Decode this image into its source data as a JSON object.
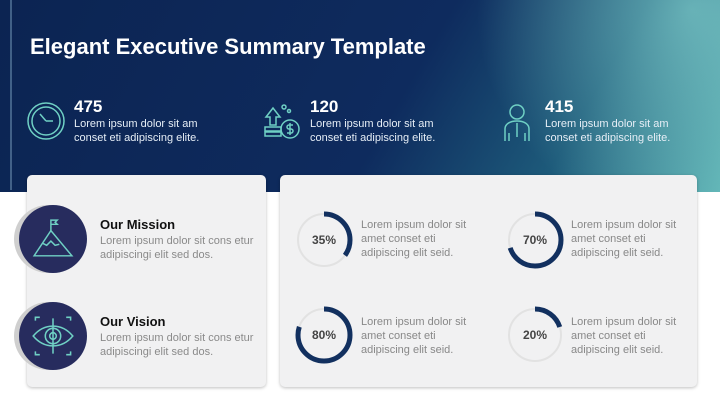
{
  "title": "Elegant Executive Summary Template",
  "stats": [
    {
      "icon": "clock-icon",
      "value": "475",
      "text": "Lorem ipsum dolor sit am conset eti adipiscing elite."
    },
    {
      "icon": "money-growth-icon",
      "value": "120",
      "text": "Lorem ipsum dolor sit am conset eti adipiscing elite."
    },
    {
      "icon": "businessman-icon",
      "value": "415",
      "text": "Lorem ipsum dolor sit am conset eti adipiscing elite."
    }
  ],
  "mission": {
    "title": "Our Mission",
    "text": "Lorem ipsum dolor sit cons etur adipiscingi elit sed dos."
  },
  "vision": {
    "title": "Our Vision",
    "text": "Lorem ipsum dolor sit cons etur adipiscingi elit sed dos."
  },
  "metrics": [
    {
      "label": "35%",
      "percent": 35,
      "text": "Lorem ipsum dolor sit amet conset eti adipiscing elit seid."
    },
    {
      "label": "70%",
      "percent": 70,
      "text": "Lorem ipsum dolor sit amet conset eti adipiscing elit seid."
    },
    {
      "label": "80%",
      "percent": 80,
      "text": "Lorem ipsum dolor sit amet conset eti adipiscing elit seid."
    },
    {
      "label": "20%",
      "percent": 20,
      "text": "Lorem ipsum dolor sit amet conset eti adipiscing elit seid."
    }
  ],
  "colors": {
    "navy": "#0c2452",
    "ring": "#12305f",
    "icon": "#6fd0c4",
    "badge": "#272c5e"
  }
}
